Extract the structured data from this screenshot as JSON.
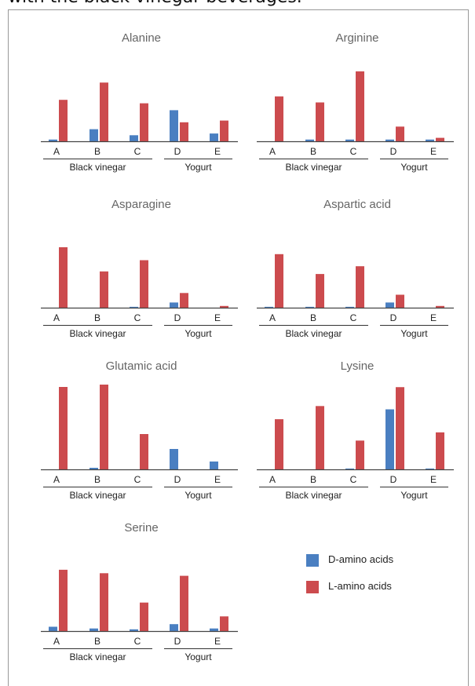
{
  "caption": "with the black vinegar beverages.",
  "colors": {
    "d": "#4a7fc1",
    "l": "#cc4b4e"
  },
  "legend": [
    {
      "name": "D-amino acids",
      "color": "#4a7fc1"
    },
    {
      "name": "L-amino acids",
      "color": "#cc4b4e"
    }
  ],
  "chart_data": [
    {
      "type": "bar",
      "title": "Alanine",
      "categories": [
        "A",
        "B",
        "C",
        "D",
        "E"
      ],
      "groups": [
        {
          "label": "Black vinegar",
          "categories": [
            "A",
            "B",
            "C"
          ]
        },
        {
          "label": "Yogurt",
          "categories": [
            "D",
            "E"
          ]
        }
      ],
      "series": [
        {
          "name": "D-amino acids",
          "values": [
            2,
            14,
            7,
            36,
            9
          ]
        },
        {
          "name": "L-amino acids",
          "values": [
            48,
            68,
            44,
            22,
            24
          ]
        }
      ],
      "ylim": [
        0,
        100
      ]
    },
    {
      "type": "bar",
      "title": "Arginine",
      "categories": [
        "A",
        "B",
        "C",
        "D",
        "E"
      ],
      "groups": [
        {
          "label": "Black vinegar",
          "categories": [
            "A",
            "B",
            "C"
          ]
        },
        {
          "label": "Yogurt",
          "categories": [
            "D",
            "E"
          ]
        }
      ],
      "series": [
        {
          "name": "D-amino acids",
          "values": [
            0,
            2,
            2,
            2,
            2
          ]
        },
        {
          "name": "L-amino acids",
          "values": [
            52,
            45,
            81,
            17,
            4
          ]
        }
      ],
      "ylim": [
        0,
        100
      ]
    },
    {
      "type": "bar",
      "title": "Asparagine",
      "categories": [
        "A",
        "B",
        "C",
        "D",
        "E"
      ],
      "groups": [
        {
          "label": "Black vinegar",
          "categories": [
            "A",
            "B",
            "C"
          ]
        },
        {
          "label": "Yogurt",
          "categories": [
            "D",
            "E"
          ]
        }
      ],
      "series": [
        {
          "name": "D-amino acids",
          "values": [
            0,
            0,
            1,
            6,
            0
          ]
        },
        {
          "name": "L-amino acids",
          "values": [
            70,
            42,
            55,
            17,
            2
          ]
        }
      ],
      "ylim": [
        0,
        100
      ]
    },
    {
      "type": "bar",
      "title": "Aspartic acid",
      "categories": [
        "A",
        "B",
        "C",
        "D",
        "E"
      ],
      "groups": [
        {
          "label": "Black vinegar",
          "categories": [
            "A",
            "B",
            "C"
          ]
        },
        {
          "label": "Yogurt",
          "categories": [
            "D",
            "E"
          ]
        }
      ],
      "series": [
        {
          "name": "D-amino acids",
          "values": [
            1,
            1,
            1,
            6,
            0
          ]
        },
        {
          "name": "L-amino acids",
          "values": [
            62,
            39,
            48,
            15,
            2
          ]
        }
      ],
      "ylim": [
        0,
        100
      ]
    },
    {
      "type": "bar",
      "title": "Glutamic acid",
      "categories": [
        "A",
        "B",
        "C",
        "D",
        "E"
      ],
      "groups": [
        {
          "label": "Black vinegar",
          "categories": [
            "A",
            "B",
            "C"
          ]
        },
        {
          "label": "Yogurt",
          "categories": [
            "D",
            "E"
          ]
        }
      ],
      "series": [
        {
          "name": "D-amino acids",
          "values": [
            0,
            2,
            0,
            26,
            10
          ]
        },
        {
          "name": "L-amino acids",
          "values": [
            105,
            108,
            45,
            0,
            0
          ]
        }
      ],
      "ylim": [
        0,
        110
      ]
    },
    {
      "type": "bar",
      "title": "Lysine",
      "categories": [
        "A",
        "B",
        "C",
        "D",
        "E"
      ],
      "groups": [
        {
          "label": "Black vinegar",
          "categories": [
            "A",
            "B",
            "C"
          ]
        },
        {
          "label": "Yogurt",
          "categories": [
            "D",
            "E"
          ]
        }
      ],
      "series": [
        {
          "name": "D-amino acids",
          "values": [
            0,
            0,
            1,
            73,
            1
          ]
        },
        {
          "name": "L-amino acids",
          "values": [
            61,
            77,
            35,
            100,
            45
          ]
        }
      ],
      "ylim": [
        0,
        105
      ]
    },
    {
      "type": "bar",
      "title": "Serine",
      "categories": [
        "A",
        "B",
        "C",
        "D",
        "E"
      ],
      "groups": [
        {
          "label": "Black vinegar",
          "categories": [
            "A",
            "B",
            "C"
          ]
        },
        {
          "label": "Yogurt",
          "categories": [
            "D",
            "E"
          ]
        }
      ],
      "series": [
        {
          "name": "D-amino acids",
          "values": [
            5,
            3,
            2,
            8,
            3
          ]
        },
        {
          "name": "L-amino acids",
          "values": [
            71,
            67,
            33,
            64,
            17
          ]
        }
      ],
      "ylim": [
        0,
        100
      ]
    }
  ]
}
